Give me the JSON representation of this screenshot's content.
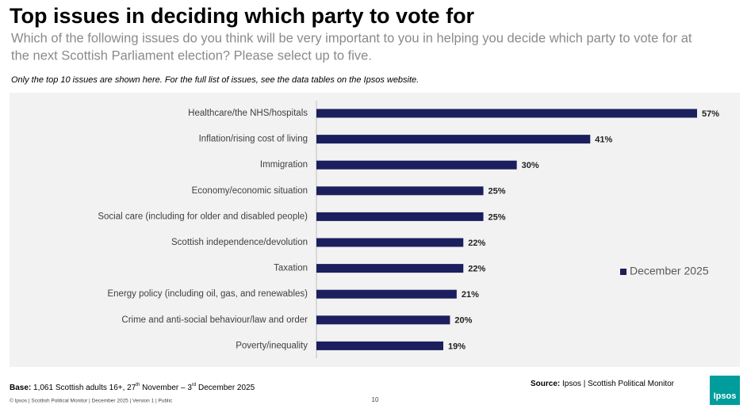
{
  "chart_data": {
    "type": "bar",
    "orientation": "horizontal",
    "title": "Top issues in deciding which party to vote for",
    "subtitle": [
      "Which of the following issues do you think will be very important to you in helping you decide which party to vote for at",
      "the next Scottish Parliament election? Please select up to five."
    ],
    "note": "Only the top 10 issues are shown here. For the full list of issues, see the data tables on the Ipsos website.",
    "categories": [
      "Healthcare/the NHS/hospitals",
      "Inflation/rising cost of living",
      "Immigration",
      "Economy/economic situation",
      "Social care (including for older and disabled people)",
      "Scottish independence/devolution",
      "Taxation",
      "Energy policy (including oil, gas, and renewables)",
      "Crime and anti-social behaviour/law and order",
      "Poverty/inequality"
    ],
    "series": [
      {
        "name": "December 2025",
        "color": "#1b1f5e",
        "values": [
          57,
          41,
          30,
          25,
          25,
          22,
          22,
          21,
          20,
          19
        ],
        "value_labels": [
          "57%",
          "41%",
          "30%",
          "25%",
          "25%",
          "22%",
          "22%",
          "21%",
          "20%",
          "19%"
        ]
      }
    ],
    "legend": "right",
    "base": {
      "label": "Base:",
      "parts": [
        "1,061 Scottish adults 16+, 27",
        "th",
        " November – 3",
        "rd",
        " December 2025"
      ]
    },
    "source": {
      "label": "Source:",
      "text": "Ipsos | Scottish Political Monitor"
    },
    "footer": "© Ipsos | Scottish Political Monitor | December 2025 | Version 1 | Public",
    "page_number": "10",
    "logo": "Ipsos"
  }
}
